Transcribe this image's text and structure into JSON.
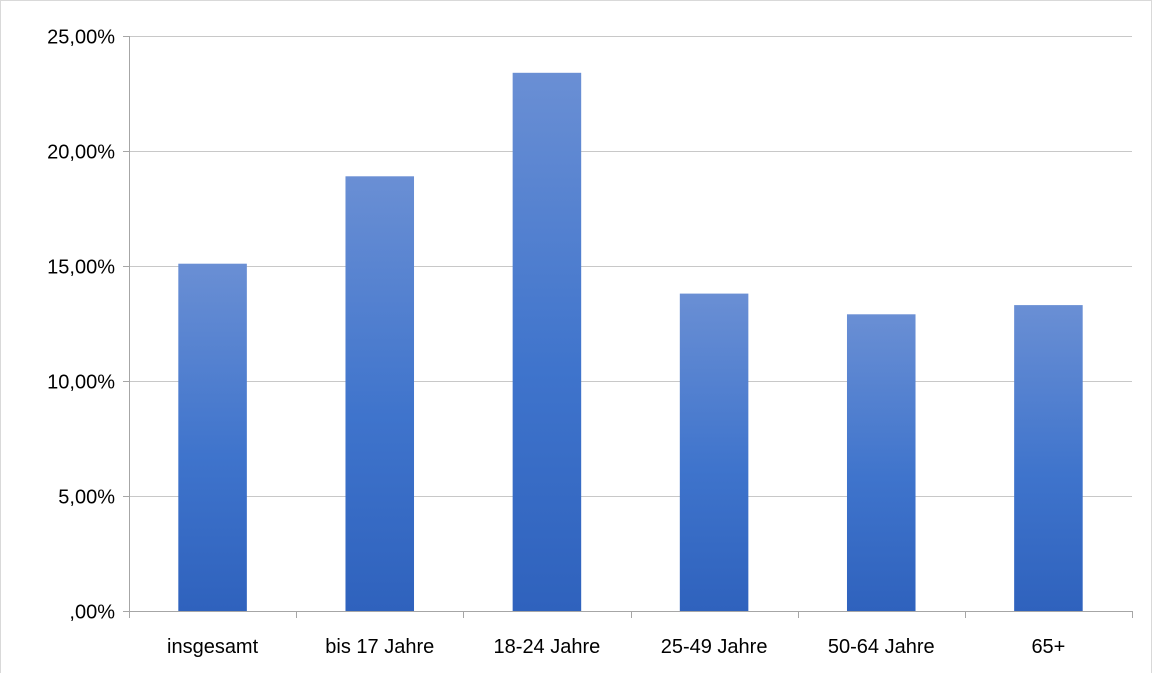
{
  "chart_data": {
    "type": "bar",
    "title": "",
    "xlabel": "",
    "ylabel": "",
    "categories": [
      "insgesamt",
      "bis 17 Jahre",
      "18-24 Jahre",
      "25-49 Jahre",
      "50-64 Jahre",
      "65+"
    ],
    "values": [
      15.1,
      18.9,
      23.4,
      13.8,
      12.9,
      13.3
    ],
    "ylim": [
      0,
      25
    ],
    "yticks": [
      0,
      5,
      10,
      15,
      20,
      25
    ],
    "ytick_labels": [
      ",00%",
      "5,00%",
      "10,00%",
      "15,00%",
      "20,00%",
      "25,00%"
    ],
    "grid": true,
    "legend": "none",
    "bar_color_top": "#6a8fd4",
    "bar_color_mid": "#3f74cc",
    "bar_color_bottom": "#2f62bd",
    "gridline_color": "#c8c8c8"
  }
}
